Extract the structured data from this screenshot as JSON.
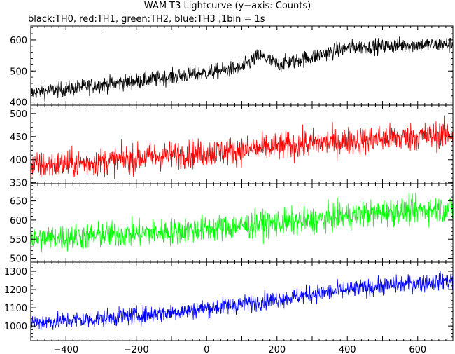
{
  "chart_data": {
    "type": "line",
    "title": "WAM T3 Lightcurve (y−axis: Counts)",
    "subtitle": "black:TH0, red:TH1, green:TH2, blue:TH3 ,1bin = 1s",
    "x_range": [
      -500,
      700
    ],
    "x_tick_labels": [
      "−400",
      "−200",
      "0",
      "200",
      "400",
      "600"
    ],
    "x_ticks": [
      -400,
      -200,
      0,
      200,
      400,
      600
    ],
    "panels": [
      {
        "series_name": "TH0",
        "color": "#000000",
        "ylim": [
          390,
          645
        ],
        "y_ticks": [
          400,
          500,
          600
        ],
        "y_tick_labels": [
          "400",
          "500",
          "600"
        ],
        "trend_x": [
          -500,
          -300,
          -100,
          100,
          150,
          200,
          300,
          400,
          500,
          600,
          700
        ],
        "trend_y": [
          430,
          455,
          480,
          510,
          550,
          520,
          545,
          575,
          580,
          585,
          585
        ],
        "noise": 18
      },
      {
        "series_name": "TH1",
        "color": "#ff0000",
        "ylim": [
          348,
          518
        ],
        "y_ticks": [
          350,
          400,
          450,
          500
        ],
        "y_tick_labels": [
          "350",
          "400",
          "450",
          "500"
        ],
        "trend_x": [
          -500,
          -300,
          -100,
          100,
          300,
          500,
          700
        ],
        "trend_y": [
          385,
          395,
          410,
          420,
          435,
          445,
          455
        ],
        "noise": 22
      },
      {
        "series_name": "TH2",
        "color": "#00ff00",
        "ylim": [
          490,
          695
        ],
        "y_ticks": [
          500,
          550,
          600,
          650
        ],
        "y_tick_labels": [
          "500",
          "550",
          "600",
          "650"
        ],
        "trend_x": [
          -500,
          -300,
          -100,
          100,
          300,
          500,
          700
        ],
        "trend_y": [
          550,
          560,
          570,
          585,
          600,
          620,
          630
        ],
        "noise": 25
      },
      {
        "series_name": "TH3",
        "color": "#0000ff",
        "ylim": [
          920,
          1350
        ],
        "y_ticks": [
          1000,
          1100,
          1200,
          1300
        ],
        "y_tick_labels": [
          "1000",
          "1100",
          "1200",
          "1300"
        ],
        "trend_x": [
          -500,
          -300,
          -100,
          100,
          300,
          500,
          700
        ],
        "trend_y": [
          1020,
          1040,
          1075,
          1120,
          1175,
          1220,
          1250
        ],
        "noise": 35
      }
    ]
  }
}
